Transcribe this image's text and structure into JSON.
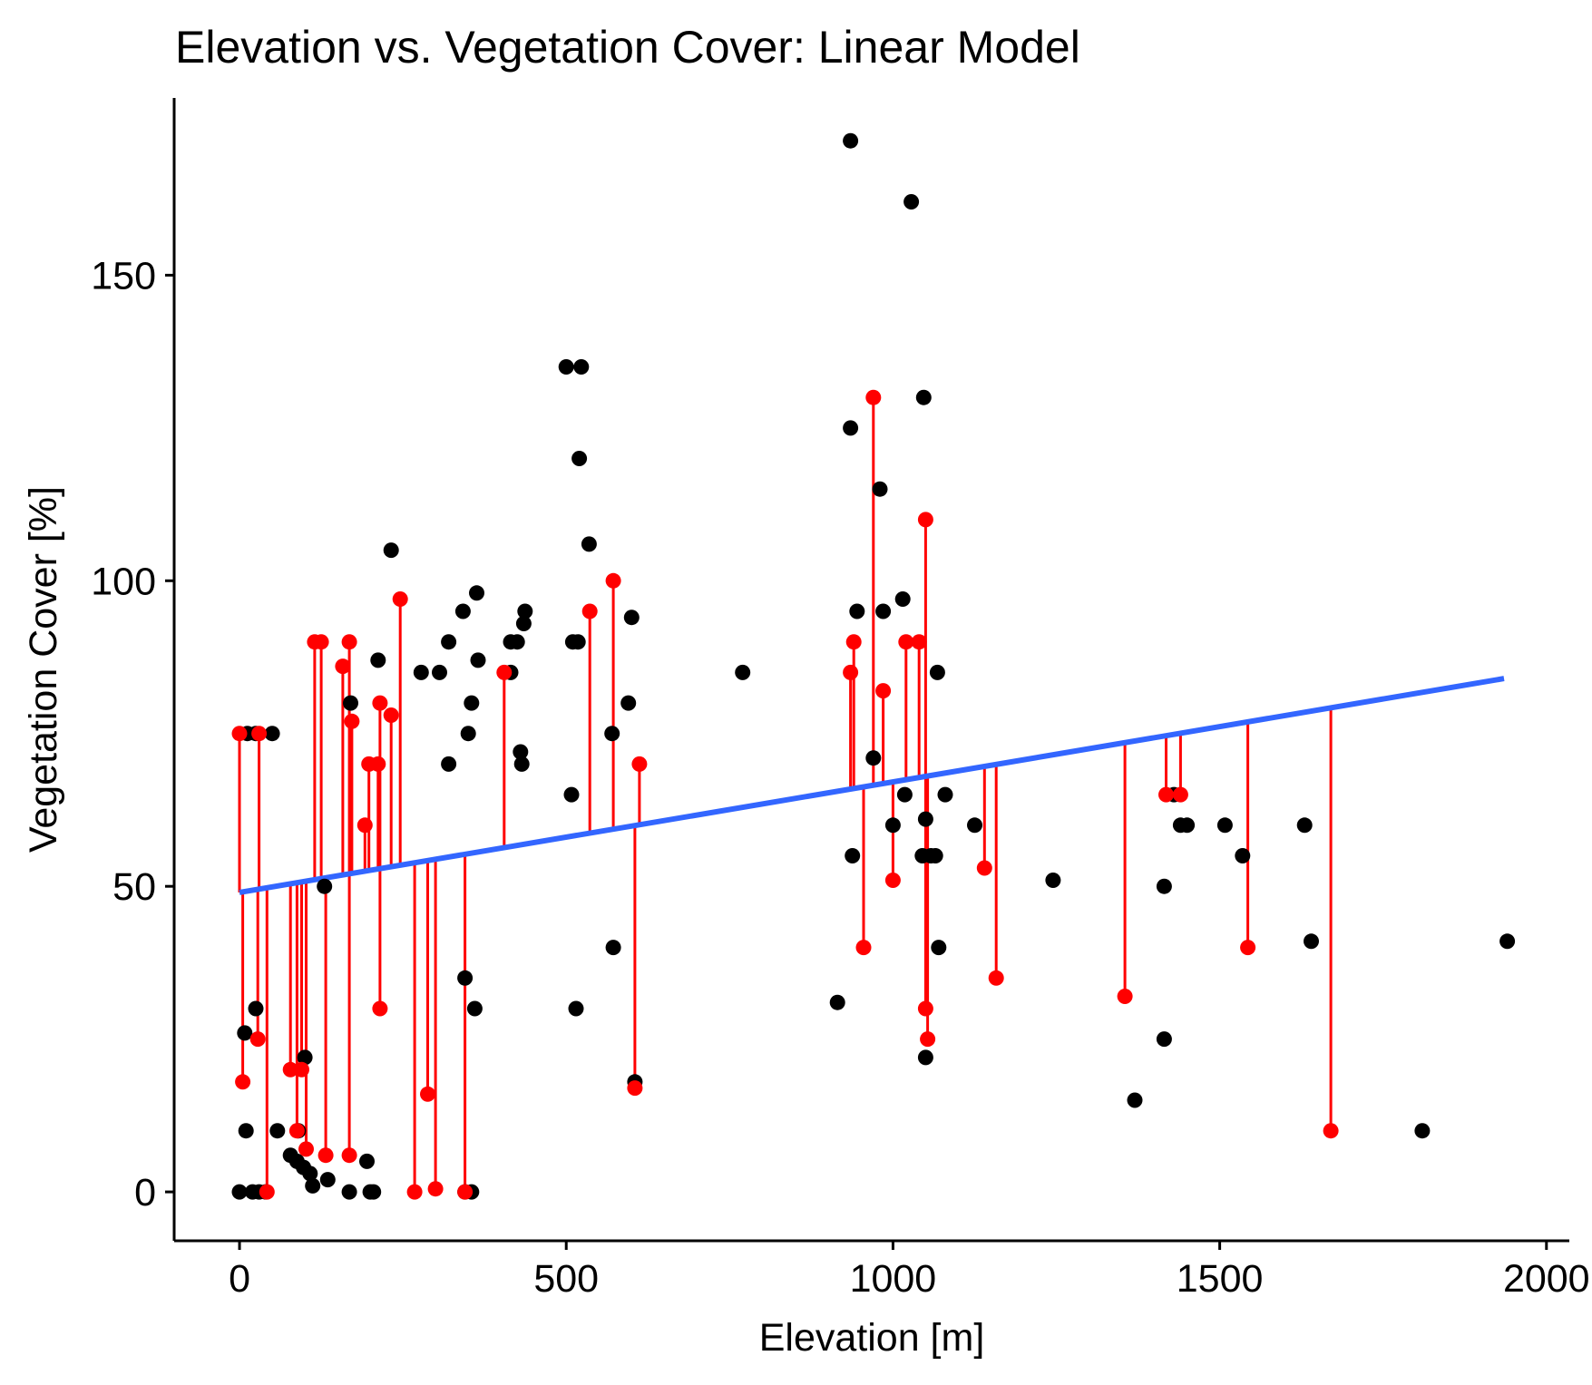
{
  "chart_data": {
    "type": "scatter",
    "title": "Elevation vs. Vegetation Cover: Linear Model",
    "xlabel": "Elevation [m]",
    "ylabel": "Vegetation Cover [%]",
    "xlim": [
      -100,
      2035
    ],
    "ylim": [
      -8,
      179
    ],
    "x_ticks": [
      0,
      500,
      1000,
      1500,
      2000
    ],
    "y_ticks": [
      0,
      50,
      100,
      150
    ],
    "grid": false,
    "legend": "none",
    "colors": {
      "observed": "#000000",
      "residual": "#ff0000",
      "fit_line": "#3366ff"
    },
    "fit_line": {
      "x": [
        0,
        1935
      ],
      "y": [
        49.0,
        84.0
      ]
    },
    "series": [
      {
        "role": "observed",
        "points": [
          [
            0,
            0
          ],
          [
            20,
            0
          ],
          [
            30,
            0
          ],
          [
            345,
            0
          ],
          [
            355,
            0
          ],
          [
            200,
            0
          ],
          [
            205,
            0
          ],
          [
            168,
            0
          ],
          [
            40,
            0
          ],
          [
            112,
            1
          ],
          [
            135,
            2
          ],
          [
            108,
            3
          ],
          [
            98,
            4
          ],
          [
            88,
            5
          ],
          [
            78,
            6
          ],
          [
            195,
            5
          ],
          [
            10,
            10
          ],
          [
            58,
            10
          ],
          [
            90,
            10
          ],
          [
            100,
            22
          ],
          [
            8,
            26
          ],
          [
            25,
            30
          ],
          [
            360,
            30
          ],
          [
            515,
            30
          ],
          [
            345,
            35
          ],
          [
            572,
            40
          ],
          [
            605,
            18
          ],
          [
            50,
            75
          ],
          [
            12,
            75
          ],
          [
            25,
            75
          ],
          [
            130,
            50
          ],
          [
            170,
            80
          ],
          [
            212,
            87
          ],
          [
            232,
            105
          ],
          [
            278,
            85
          ],
          [
            306,
            85
          ],
          [
            320,
            90
          ],
          [
            320,
            70
          ],
          [
            342,
            95
          ],
          [
            350,
            75
          ],
          [
            355,
            80
          ],
          [
            363,
            98
          ],
          [
            365,
            87
          ],
          [
            415,
            85
          ],
          [
            415,
            90
          ],
          [
            425,
            90
          ],
          [
            430,
            72
          ],
          [
            432,
            70
          ],
          [
            435,
            93
          ],
          [
            437,
            95
          ],
          [
            500,
            135
          ],
          [
            510,
            90
          ],
          [
            508,
            65
          ],
          [
            518,
            90
          ],
          [
            520,
            120
          ],
          [
            523,
            135
          ],
          [
            535,
            106
          ],
          [
            570,
            75
          ],
          [
            595,
            80
          ],
          [
            600,
            94
          ],
          [
            770,
            85
          ],
          [
            915,
            31
          ],
          [
            935,
            172
          ],
          [
            935,
            125
          ],
          [
            938,
            55
          ],
          [
            945,
            95
          ],
          [
            970,
            71
          ],
          [
            980,
            115
          ],
          [
            985,
            95
          ],
          [
            1000,
            60
          ],
          [
            1015,
            97
          ],
          [
            1018,
            65
          ],
          [
            1028,
            162
          ],
          [
            1045,
            55
          ],
          [
            1047,
            130
          ],
          [
            1050,
            61
          ],
          [
            1050,
            22
          ],
          [
            1058,
            55
          ],
          [
            1065,
            55
          ],
          [
            1068,
            85
          ],
          [
            1070,
            40
          ],
          [
            1080,
            65
          ],
          [
            1125,
            60
          ],
          [
            1245,
            51
          ],
          [
            1370,
            15
          ],
          [
            1415,
            50
          ],
          [
            1415,
            25
          ],
          [
            1430,
            65
          ],
          [
            1440,
            60
          ],
          [
            1450,
            60
          ],
          [
            1508,
            60
          ],
          [
            1535,
            55
          ],
          [
            1630,
            60
          ],
          [
            1640,
            41
          ],
          [
            1810,
            10
          ],
          [
            1940,
            41
          ]
        ]
      },
      {
        "role": "residual",
        "points": [
          [
            0,
            75
          ],
          [
            5,
            18
          ],
          [
            28,
            25
          ],
          [
            30,
            75
          ],
          [
            42,
            0
          ],
          [
            78,
            20
          ],
          [
            88,
            10
          ],
          [
            95,
            20
          ],
          [
            102,
            7
          ],
          [
            115,
            90
          ],
          [
            125,
            90
          ],
          [
            132,
            6
          ],
          [
            158,
            86
          ],
          [
            168,
            90
          ],
          [
            168,
            6
          ],
          [
            172,
            77
          ],
          [
            192,
            60
          ],
          [
            198,
            70
          ],
          [
            212,
            70
          ],
          [
            215,
            30
          ],
          [
            215,
            80
          ],
          [
            232,
            78
          ],
          [
            246,
            97
          ],
          [
            268,
            0
          ],
          [
            288,
            16
          ],
          [
            300,
            0.5
          ],
          [
            345,
            0
          ],
          [
            405,
            85
          ],
          [
            536,
            95
          ],
          [
            572,
            100
          ],
          [
            605,
            17
          ],
          [
            612,
            70
          ],
          [
            935,
            85
          ],
          [
            940,
            90
          ],
          [
            955,
            40
          ],
          [
            970,
            130
          ],
          [
            985,
            82
          ],
          [
            1000,
            51
          ],
          [
            1020,
            90
          ],
          [
            1040,
            90
          ],
          [
            1050,
            110
          ],
          [
            1050,
            30
          ],
          [
            1053,
            25
          ],
          [
            1140,
            53
          ],
          [
            1158,
            35
          ],
          [
            1355,
            32
          ],
          [
            1418,
            65
          ],
          [
            1440,
            65
          ],
          [
            1543,
            40
          ],
          [
            1670,
            10
          ]
        ]
      }
    ]
  }
}
